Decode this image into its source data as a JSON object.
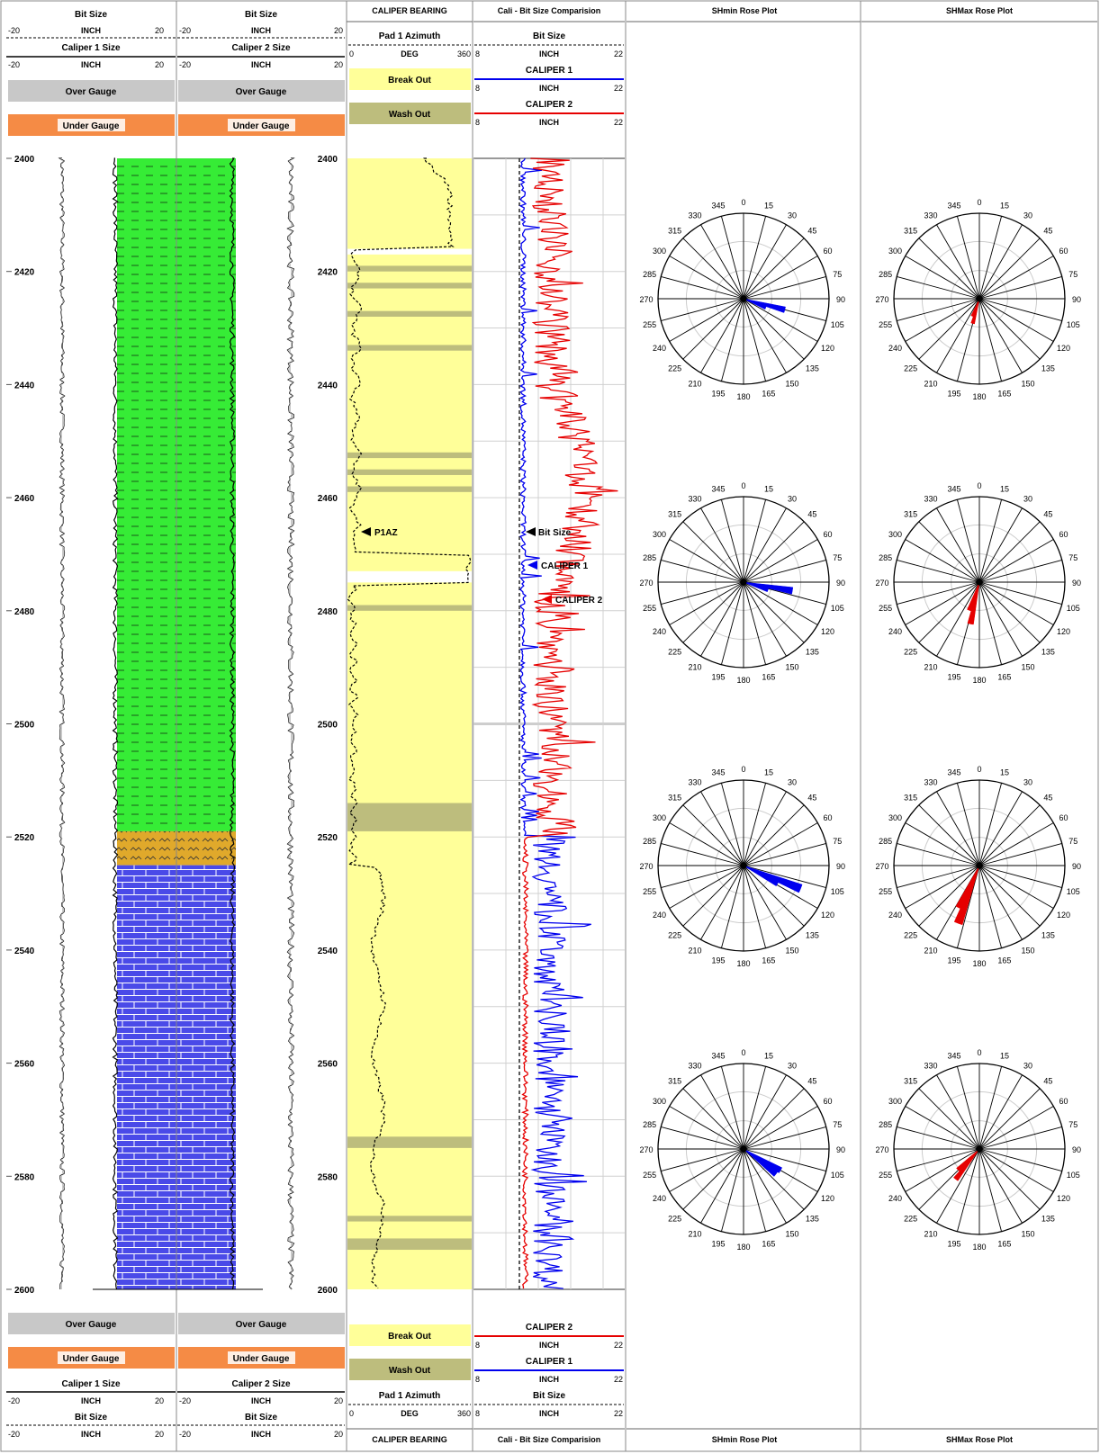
{
  "tracks": {
    "caliper1": {
      "bit_size": "Bit Size",
      "caliper_size": "Caliper 1 Size",
      "unit": "INCH",
      "min": "-20",
      "max": "20"
    },
    "caliper2": {
      "bit_size": "Bit Size",
      "caliper_size": "Caliper 2 Size",
      "unit": "INCH",
      "min": "-20",
      "max": "20"
    },
    "bearing": {
      "title": "CALIPER BEARING",
      "curve": "Pad 1 Azimuth",
      "unit": "DEG",
      "min": "0",
      "max": "360",
      "break_out": "Break Out",
      "wash_out": "Wash Out",
      "marker": "P1AZ"
    },
    "compare": {
      "title": "Cali - Bit Size Comparision",
      "bit": "Bit Size",
      "cal1": "CALIPER 1",
      "cal2": "CALIPER 2",
      "unit": "INCH",
      "min": "8",
      "max": "22",
      "m_bit": "Bit Size",
      "m_cal1": "CALIPER 1",
      "m_cal2": "CALIPER 2"
    },
    "shmin": {
      "title": "SHmin Rose Plot"
    },
    "shmax": {
      "title": "SHMax Rose Plot"
    }
  },
  "legend": {
    "over": "Over Gauge",
    "under": "Under Gauge"
  },
  "colors": {
    "over": "#c8c8c8",
    "under": "#f58b45",
    "shale": "#36ec36",
    "siltstone": "#e0a92b",
    "limestone": "#4a4ae8",
    "breakout": "#ffff99",
    "washout": "#bdbd7d",
    "cal1": "#0000ee",
    "cal2": "#e60000"
  },
  "chart_data": {
    "type": "well-log",
    "depth_range": [
      2400,
      2600
    ],
    "depth_ticks": [
      "2400",
      "2420",
      "2440",
      "2460",
      "2480",
      "2500",
      "2520",
      "2540",
      "2560",
      "2580",
      "2600"
    ],
    "lithology": [
      {
        "top": 2400,
        "base": 2519,
        "rock": "shale"
      },
      {
        "top": 2519,
        "base": 2525,
        "rock": "siltstone"
      },
      {
        "top": 2525,
        "base": 2600,
        "rock": "limestone"
      }
    ],
    "bit_size_in": 12.25,
    "breakout_intervals": [
      [
        2400,
        2416
      ],
      [
        2417,
        2473
      ],
      [
        2475,
        2600
      ]
    ],
    "washout_intervals": [
      [
        2419,
        2420
      ],
      [
        2422,
        2423
      ],
      [
        2427,
        2428
      ],
      [
        2433,
        2434
      ],
      [
        2452,
        2453
      ],
      [
        2455,
        2456
      ],
      [
        2458,
        2459
      ],
      [
        2479,
        2480
      ],
      [
        2514,
        2519
      ],
      [
        2573,
        2575
      ],
      [
        2587,
        2588
      ],
      [
        2591,
        2593
      ]
    ],
    "rose_angle_labels": [
      "0",
      "15",
      "30",
      "45",
      "60",
      "75",
      "90",
      "105",
      "120",
      "135",
      "150",
      "165",
      "180",
      "195",
      "210",
      "225",
      "240",
      "255",
      "270",
      "285",
      "300",
      "315",
      "330",
      "345"
    ],
    "shmin_roses": [
      {
        "petals": [
          {
            "az": 105,
            "len": 0.5
          },
          {
            "az": 112,
            "len": 0.28
          }
        ]
      },
      {
        "petals": [
          {
            "az": 100,
            "len": 0.58
          },
          {
            "az": 108,
            "len": 0.3
          }
        ]
      },
      {
        "petals": [
          {
            "az": 112,
            "len": 0.72
          },
          {
            "az": 118,
            "len": 0.45
          }
        ]
      },
      {
        "petals": [
          {
            "az": 120,
            "len": 0.5
          },
          {
            "az": 128,
            "len": 0.48
          }
        ]
      }
    ],
    "shmax_roses": [
      {
        "petals": [
          {
            "az": 195,
            "len": 0.3
          },
          {
            "az": 202,
            "len": 0.22
          }
        ]
      },
      {
        "petals": [
          {
            "az": 192,
            "len": 0.5
          },
          {
            "az": 200,
            "len": 0.35
          }
        ]
      },
      {
        "petals": [
          {
            "az": 200,
            "len": 0.72
          },
          {
            "az": 206,
            "len": 0.55
          }
        ]
      },
      {
        "petals": [
          {
            "az": 218,
            "len": 0.45
          },
          {
            "az": 226,
            "len": 0.35
          }
        ]
      }
    ]
  }
}
